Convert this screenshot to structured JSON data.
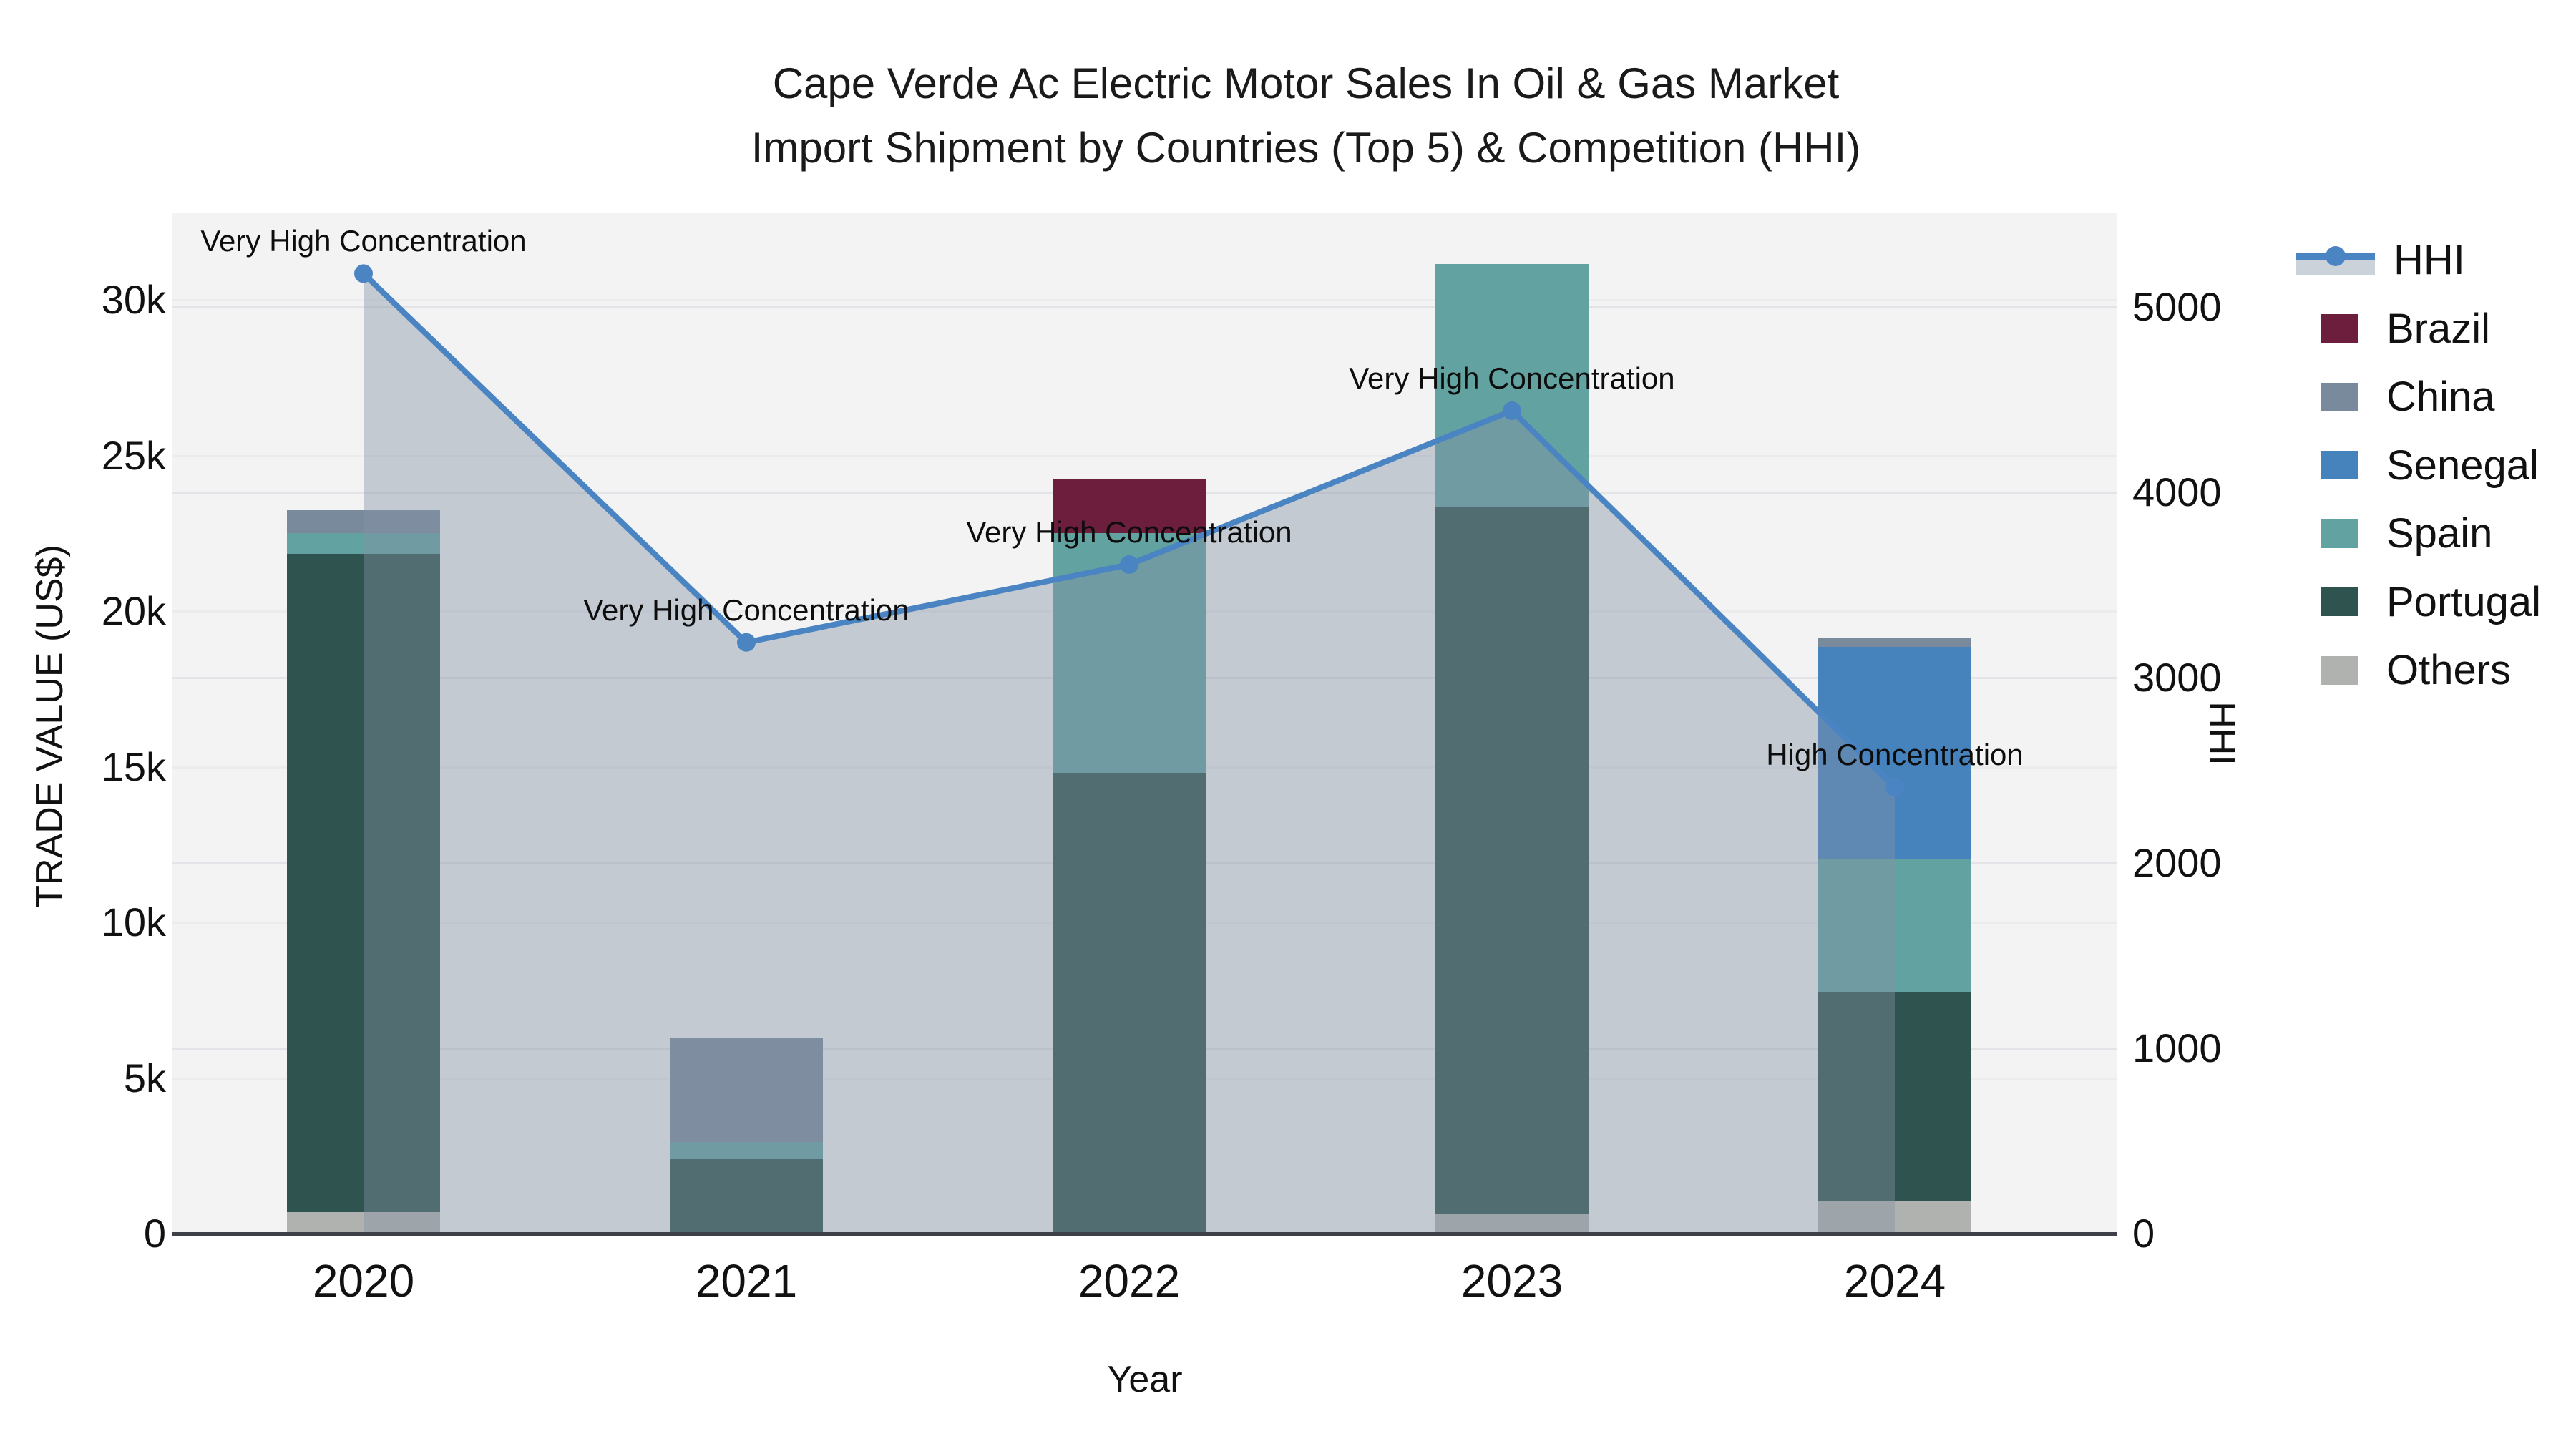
{
  "title": {
    "line1": "Cape Verde Ac Electric Motor Sales In Oil & Gas Market",
    "line2": "Import Shipment by Countries (Top 5) & Competition (HHI)"
  },
  "axes": {
    "x": {
      "title": "Year"
    },
    "y_left": {
      "title": "TRADE VALUE (US$)"
    },
    "y_right": {
      "title": "HHI"
    }
  },
  "legend_order": [
    "HHI",
    "Brazil",
    "China",
    "Senegal",
    "Spain",
    "Portugal",
    "Others"
  ],
  "chart_data": {
    "type": "bar+line dual-axis (stacked bars left axis, HHI line right axis)",
    "categories": [
      "2020",
      "2021",
      "2022",
      "2023",
      "2024"
    ],
    "bar_stack_order_bottom_to_top": [
      "Others",
      "Portugal",
      "Spain",
      "Senegal",
      "China",
      "Brazil"
    ],
    "series": [
      {
        "name": "Others",
        "color": "#b0b2af",
        "values": [
          700,
          0,
          0,
          650,
          1050
        ]
      },
      {
        "name": "Portugal",
        "color": "#2f534e",
        "values": [
          21150,
          2400,
          14800,
          22700,
          6700
        ]
      },
      {
        "name": "Spain",
        "color": "#62a2a0",
        "values": [
          650,
          550,
          7700,
          7800,
          4300
        ]
      },
      {
        "name": "Senegal",
        "color": "#4682bc",
        "values": [
          0,
          0,
          0,
          0,
          6800
        ]
      },
      {
        "name": "China",
        "color": "#7a8a9d",
        "values": [
          750,
          3330,
          0,
          0,
          300
        ]
      },
      {
        "name": "Brazil",
        "color": "#6e1e3d",
        "values": [
          0,
          0,
          1750,
          0,
          0
        ]
      }
    ],
    "bar_totals": [
      23250,
      6280,
      24250,
      31150,
      19150
    ],
    "line_series": {
      "name": "HHI",
      "color": "#4b84c2",
      "values": [
        5180,
        3190,
        3610,
        4440,
        2410
      ]
    },
    "annotations": [
      {
        "year": "2020",
        "text": "Very High Concentration"
      },
      {
        "year": "2021",
        "text": "Very High Concentration"
      },
      {
        "year": "2022",
        "text": "Very High Concentration"
      },
      {
        "year": "2023",
        "text": "Very High Concentration"
      },
      {
        "year": "2024",
        "text": "High Concentration"
      }
    ],
    "xlabel": "Year",
    "ylabel_left": "TRADE VALUE (US$)",
    "ylabel_right": "HHI",
    "ylim_left": [
      0,
      31500
    ],
    "ylim_right": [
      0,
      5450
    ],
    "left_ticks": {
      "values": [
        0,
        5000,
        10000,
        15000,
        20000,
        25000,
        30000
      ],
      "labels": [
        "0",
        "5k",
        "10k",
        "15k",
        "20k",
        "25k",
        "30k"
      ]
    },
    "right_ticks": {
      "values": [
        0,
        1000,
        2000,
        3000,
        4000,
        5000
      ],
      "labels": [
        "0",
        "1000",
        "2000",
        "3000",
        "4000",
        "5000"
      ]
    },
    "grid": "horizontal gridlines for both axes, very light",
    "legend_position": "right side, outside plot",
    "area_fill_under_line": true
  },
  "colors": {
    "hhi_line": "#4b84c2",
    "area_fill": "rgba(130,145,165,0.42)",
    "plot_background": "#f3f3f3",
    "page_background": "#ffffff",
    "axis_line": "#3d4147"
  }
}
